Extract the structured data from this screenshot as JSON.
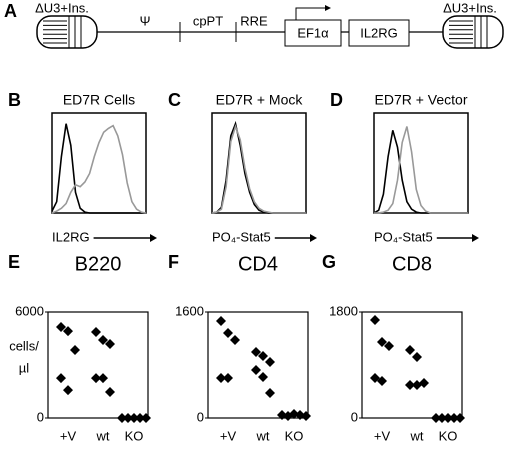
{
  "diagram": {
    "label": "A",
    "ltr_left": "ΔU3+Ins.",
    "psi": "Ψ",
    "cppt": "cpPT",
    "rre": "RRE",
    "promoter": "EF1α",
    "gene": "IL2RG",
    "ltr_right": "ΔU3+Ins."
  },
  "chart_data": [
    {
      "type": "histogram-curve",
      "label": "B",
      "title": "ED7R Cells",
      "xlabel": "IL2RG",
      "ylim": [
        0,
        100
      ],
      "series": [
        {
          "color": "#000000",
          "values": [
            2,
            12,
            60,
            95,
            72,
            22,
            5,
            1,
            0,
            0,
            0,
            0,
            0,
            0,
            0,
            0,
            0,
            0,
            0,
            0,
            0
          ]
        },
        {
          "color": "#999999",
          "values": [
            0,
            2,
            5,
            10,
            22,
            30,
            28,
            33,
            42,
            60,
            75,
            86,
            90,
            93,
            82,
            62,
            32,
            12,
            4,
            1,
            0
          ]
        }
      ]
    },
    {
      "type": "histogram-curve",
      "label": "C",
      "title": "ED7R + Mock",
      "xlabel": "PO₄-Stat5",
      "ylim": [
        0,
        100
      ],
      "series": [
        {
          "color": "#000000",
          "values": [
            0,
            1,
            6,
            35,
            82,
            95,
            72,
            42,
            22,
            9,
            3,
            1,
            0,
            0,
            0,
            0,
            0,
            0,
            0,
            0,
            0
          ]
        },
        {
          "color": "#999999",
          "values": [
            0,
            1,
            4,
            28,
            76,
            92,
            78,
            48,
            26,
            12,
            5,
            2,
            1,
            0,
            0,
            0,
            0,
            0,
            0,
            0,
            0
          ]
        }
      ]
    },
    {
      "type": "histogram-curve",
      "label": "D",
      "title": "ED7R + Vector",
      "xlabel": "PO₄-Stat5",
      "ylim": [
        0,
        100
      ],
      "series": [
        {
          "color": "#000000",
          "values": [
            0,
            3,
            20,
            60,
            88,
            70,
            35,
            12,
            4,
            1,
            0,
            0,
            0,
            0,
            0,
            0,
            0,
            0,
            0,
            0,
            0
          ]
        },
        {
          "color": "#999999",
          "values": [
            0,
            0,
            1,
            3,
            10,
            35,
            75,
            92,
            65,
            25,
            8,
            2,
            0,
            0,
            0,
            0,
            0,
            0,
            0,
            0,
            0
          ]
        }
      ]
    },
    {
      "type": "scatter",
      "label": "E",
      "title": "B220",
      "ylabel": [
        "cells/",
        "µl"
      ],
      "categories": [
        "+V",
        "wt",
        "KO"
      ],
      "ylim": [
        0,
        6000
      ],
      "yticks": [
        0,
        6000
      ],
      "values": [
        [
          5150,
          4920,
          3850,
          2260,
          1580
        ],
        [
          4870,
          4415,
          4190,
          2260,
          2260,
          1470
        ],
        [
          0,
          0,
          0,
          0,
          0
        ]
      ]
    },
    {
      "type": "scatter",
      "label": "F",
      "title": "CD4",
      "categories": [
        "+V",
        "wt",
        "KO"
      ],
      "ylim": [
        0,
        1600
      ],
      "yticks": [
        0,
        1600
      ],
      "values": [
        [
          1464,
          1283,
          1177,
          604,
          604
        ],
        [
          996,
          936,
          845,
          725,
          619,
          377
        ],
        [
          45,
          30,
          60,
          45,
          30
        ]
      ]
    },
    {
      "type": "scatter",
      "label": "G",
      "title": "CD8",
      "categories": [
        "+V",
        "wt",
        "KO"
      ],
      "ylim": [
        0,
        1800
      ],
      "yticks": [
        0,
        1800
      ],
      "values": [
        [
          1664,
          1290,
          1223,
          679,
          628
        ],
        [
          1155,
          1036,
          594,
          560,
          560
        ],
        [
          0,
          0,
          0,
          0,
          0
        ]
      ]
    }
  ]
}
